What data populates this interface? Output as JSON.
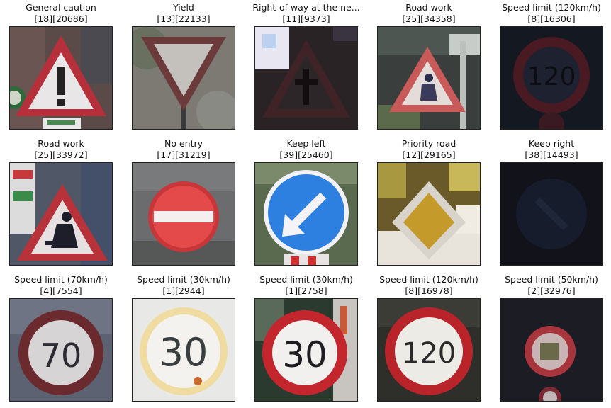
{
  "grid": {
    "items": [
      {
        "label": "General caution",
        "idx": "[18][20686]"
      },
      {
        "label": "Yield",
        "idx": "[13][22133]"
      },
      {
        "label": "Right-of-way at the ne...",
        "idx": "[11][9373]"
      },
      {
        "label": "Road work",
        "idx": "[25][34358]"
      },
      {
        "label": "Speed limit (120km/h)",
        "idx": "[8][16306]"
      },
      {
        "label": "Road work",
        "idx": "[25][33972]"
      },
      {
        "label": "No entry",
        "idx": "[17][31219]"
      },
      {
        "label": "Keep left",
        "idx": "[39][25460]"
      },
      {
        "label": "Priority road",
        "idx": "[12][29165]"
      },
      {
        "label": "Keep right",
        "idx": "[38][14493]"
      },
      {
        "label": "Speed limit (70km/h)",
        "idx": "[4][7554]"
      },
      {
        "label": "Speed limit (30km/h)",
        "idx": "[1][2944]"
      },
      {
        "label": "Speed limit (30km/h)",
        "idx": "[1][2758]"
      },
      {
        "label": "Speed limit (120km/h)",
        "idx": "[8][16978]"
      },
      {
        "label": "Speed limit (50km/h)",
        "idx": "[2][32976]"
      }
    ],
    "sign_numbers": [
      "70",
      "30",
      "30",
      "120"
    ]
  }
}
